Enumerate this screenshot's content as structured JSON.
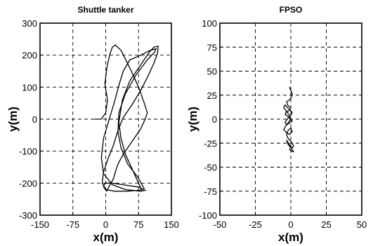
{
  "chart_data": [
    {
      "type": "line",
      "title": "Shuttle tanker",
      "xlabel": "x(m)",
      "ylabel": "y(m)",
      "xlim": [
        -150,
        150
      ],
      "ylim": [
        -300,
        300
      ],
      "xticks": [
        -150,
        -75,
        0,
        75,
        150
      ],
      "yticks": [
        -300,
        -200,
        -100,
        0,
        100,
        200,
        300
      ],
      "xtick_labels": [
        "-150",
        "-75",
        "0",
        "75",
        "150"
      ],
      "ytick_labels": [
        "-300",
        "-200",
        "-100",
        "0",
        "100",
        "200",
        "300"
      ],
      "grid": true,
      "series": [
        {
          "x": [
            -25,
            -10,
            0,
            4,
            -2,
            3,
            10,
            15,
            22,
            35,
            55,
            75,
            88,
            95,
            90,
            80,
            60,
            40,
            28,
            22,
            18,
            10,
            2,
            -5,
            -2,
            15,
            45,
            75,
            85,
            80,
            65,
            45,
            35,
            30,
            38,
            55,
            80,
            100,
            110,
            120,
            118,
            110,
            95,
            78,
            60,
            40,
            28,
            18,
            5,
            -5,
            -8,
            0,
            20,
            50,
            78,
            88,
            75,
            50,
            35,
            28,
            30,
            45,
            70,
            95,
            112,
            115,
            100,
            80,
            55,
            40,
            30,
            20,
            8,
            -5,
            -10,
            -5,
            15,
            45,
            80,
            92
          ],
          "y": [
            0,
            0,
            20,
            60,
            110,
            165,
            205,
            225,
            232,
            215,
            160,
            100,
            50,
            20,
            0,
            -30,
            -70,
            -110,
            -140,
            -165,
            -185,
            -205,
            -225,
            -212,
            -200,
            -200,
            -206,
            -212,
            -220,
            -215,
            -170,
            -110,
            -60,
            -10,
            60,
            120,
            170,
            210,
            225,
            228,
            205,
            175,
            130,
            85,
            45,
            5,
            -35,
            -80,
            -125,
            -165,
            -200,
            -220,
            -225,
            -225,
            -222,
            -218,
            -185,
            -140,
            -90,
            -40,
            20,
            80,
            140,
            185,
            210,
            220,
            214,
            200,
            185,
            150,
            105,
            55,
            0,
            -60,
            -120,
            -170,
            -205,
            -220,
            -225,
            -222
          ]
        }
      ]
    },
    {
      "type": "line",
      "title": "FPSO",
      "xlabel": "x(m)",
      "ylabel": "y(m)",
      "xlim": [
        -50,
        50
      ],
      "ylim": [
        -100,
        100
      ],
      "xticks": [
        -50,
        -25,
        0,
        25,
        50
      ],
      "yticks": [
        -100,
        -75,
        -50,
        -25,
        0,
        25,
        50,
        75,
        100
      ],
      "xtick_labels": [
        "-50",
        "-25",
        "0",
        "25",
        "50"
      ],
      "ytick_labels": [
        "-100",
        "-75",
        "-50",
        "-25",
        "0",
        "25",
        "50",
        "75",
        "100"
      ],
      "grid": true,
      "series": [
        {
          "x": [
            -1,
            0,
            1,
            0,
            -1,
            -3,
            -2,
            0,
            -1,
            -3,
            -4,
            -2,
            0,
            1,
            -1,
            -3,
            -4,
            -2,
            0,
            1,
            -1,
            -3,
            -4,
            -5,
            -3,
            -1,
            0,
            -2,
            -4,
            -5,
            -3,
            -1,
            1,
            0,
            -2,
            -3,
            -2,
            0,
            1,
            2,
            1,
            -1,
            -2,
            -3,
            -2,
            0,
            1,
            2,
            0,
            -1
          ],
          "y": [
            33,
            30,
            26,
            22,
            20,
            18,
            14,
            12,
            9,
            8,
            5,
            3,
            0,
            -2,
            -4,
            -6,
            -3,
            1,
            4,
            7,
            10,
            13,
            15,
            12,
            8,
            4,
            0,
            -4,
            -8,
            -11,
            -14,
            -16,
            -13,
            -9,
            -12,
            -16,
            -20,
            -23,
            -25,
            -28,
            -30,
            -27,
            -24,
            -22,
            -26,
            -30,
            -32,
            -34,
            -33,
            -31
          ]
        }
      ]
    }
  ]
}
